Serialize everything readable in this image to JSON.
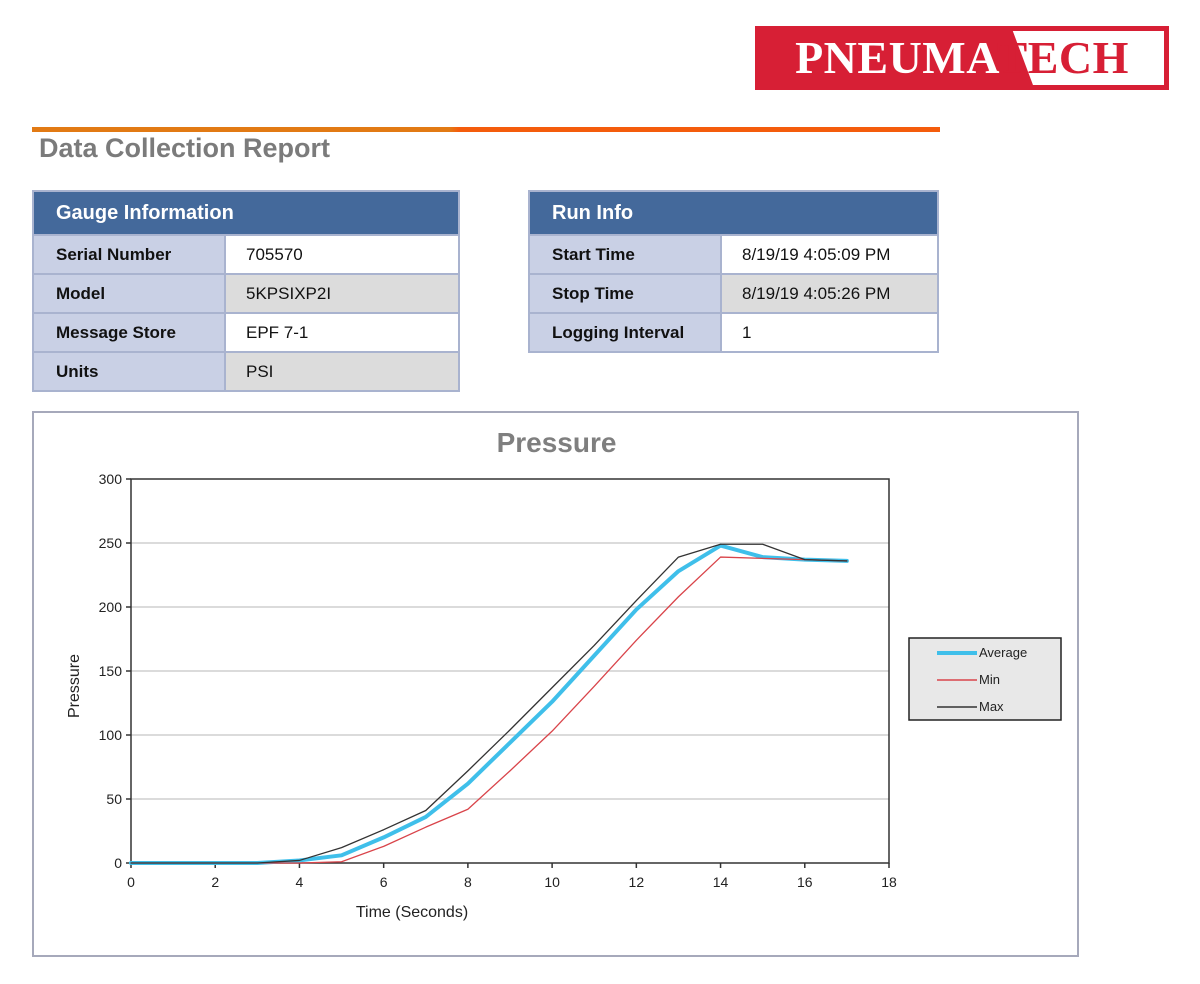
{
  "logo": {
    "part1": "PNEUMA",
    "part2": "TECH",
    "red": "#d71f35"
  },
  "report": {
    "title": "Data Collection Report"
  },
  "gauge_info": {
    "title": "Gauge Information",
    "rows": [
      {
        "label": "Serial Number",
        "value": "705570"
      },
      {
        "label": "Model",
        "value": "5KPSIXP2I"
      },
      {
        "label": "Message Store",
        "value": "EPF 7-1"
      },
      {
        "label": "Units",
        "value": "PSI"
      }
    ]
  },
  "run_info": {
    "title": "Run Info",
    "rows": [
      {
        "label": "Start Time",
        "value": "8/19/19 4:05:09 PM"
      },
      {
        "label": "Stop Time",
        "value": "8/19/19 4:05:26 PM"
      },
      {
        "label": "Logging Interval",
        "value": "1"
      }
    ]
  },
  "chart_data": {
    "type": "line",
    "title": "Pressure",
    "xlabel": "Time (Seconds)",
    "ylabel": "Pressure",
    "xlim": [
      0,
      18
    ],
    "ylim": [
      0,
      300
    ],
    "x_ticks": [
      0,
      2,
      4,
      6,
      8,
      10,
      12,
      14,
      16,
      18
    ],
    "y_ticks": [
      0,
      50,
      100,
      150,
      200,
      250,
      300
    ],
    "grid": {
      "horizontal": true,
      "vertical": false
    },
    "legend_position": "right",
    "x": [
      0,
      1,
      2,
      3,
      4,
      5,
      6,
      7,
      8,
      9,
      10,
      11,
      12,
      13,
      14,
      15,
      16,
      17
    ],
    "series": [
      {
        "name": "Average",
        "color": "#3fbfea",
        "width": 4,
        "values": [
          0,
          0,
          0,
          0,
          2,
          6,
          20,
          36,
          62,
          94,
          126,
          162,
          198,
          228,
          248,
          239,
          237,
          236
        ]
      },
      {
        "name": "Min",
        "color": "#d9444a",
        "width": 1.3,
        "values": [
          0,
          0,
          0,
          0,
          0,
          1,
          13,
          28,
          42,
          72,
          103,
          138,
          174,
          208,
          239,
          238,
          237,
          236
        ]
      },
      {
        "name": "Max",
        "color": "#333333",
        "width": 1.3,
        "values": [
          0,
          0,
          0,
          0,
          2,
          12,
          26,
          41,
          72,
          104,
          137,
          170,
          205,
          239,
          249,
          249,
          237,
          236
        ]
      }
    ]
  }
}
